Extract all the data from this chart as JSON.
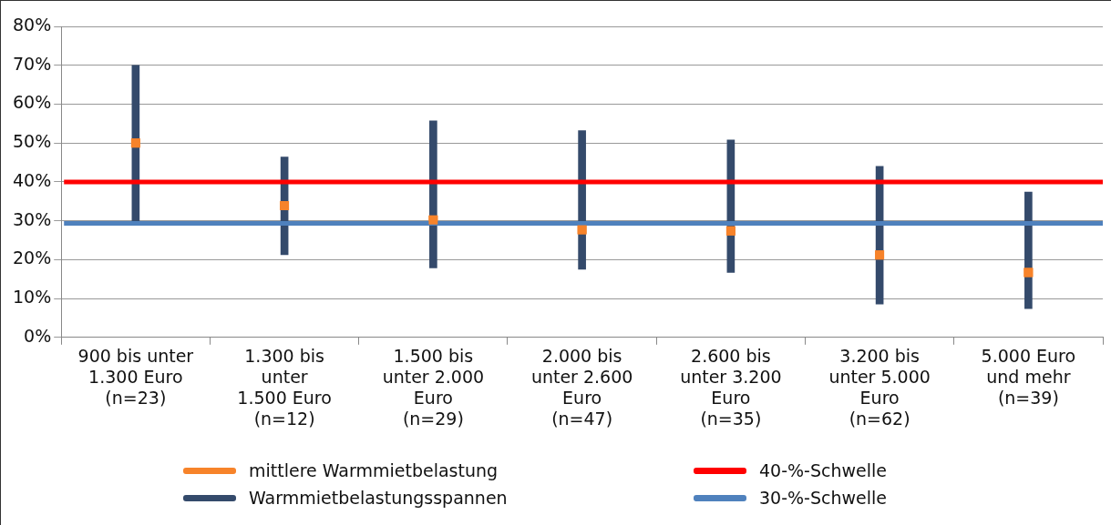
{
  "chart_data": {
    "type": "bar",
    "categories": [
      "900 bis unter\n1.300 Euro\n(n=23)",
      "1.300 bis\nunter\n1.500 Euro\n(n=12)",
      "1.500 bis\nunter 2.000\nEuro\n(n=29)",
      "2.000 bis\nunter 2.600\nEuro\n(n=47)",
      "2.600 bis\nunter 3.200\nEuro\n(n=35)",
      "3.200 bis\nunter 5.000\nEuro\n(n=62)",
      "5.000 Euro\nund mehr\n(n=39)"
    ],
    "series": [
      {
        "name": "mittlere Warmmietbelastung",
        "type": "scatter",
        "marker": "square",
        "color": "#f7832a",
        "x": [
          "900 bis unter\n1.300 Euro\n(n=23)",
          "1.300 bis\nunter\n1.500 Euro\n(n=12)",
          "1.500 bis\nunter 2.000\nEuro\n(n=29)",
          "2.000 bis\nunter 2.600\nEuro\n(n=47)",
          "2.600 bis\nunter 3.200\nEuro\n(n=35)",
          "3.200 bis\nunter 5.000\nEuro\n(n=62)",
          "5.000 Euro\nund mehr\n(n=39)"
        ],
        "values": [
          50,
          33.9,
          30.2,
          27.7,
          27.4,
          21.2,
          16.7
        ]
      },
      {
        "name": "Warmmietbelastungsspannen",
        "color": "#344a6b",
        "base": [
          30,
          21.3,
          17.9,
          17.5,
          16.7,
          8.6,
          7.4
        ],
        "values": [
          40,
          25.1,
          37.8,
          35.7,
          34.1,
          35.4,
          30
        ]
      }
    ],
    "ylim": [
      0,
      80
    ],
    "yticks": [
      {
        "value": 0,
        "label": "0%"
      },
      {
        "value": 10,
        "label": "10%"
      },
      {
        "value": 20,
        "label": "20%"
      },
      {
        "value": 30,
        "label": "30%"
      },
      {
        "value": 40,
        "label": "40%"
      },
      {
        "value": 50,
        "label": "50%"
      },
      {
        "value": 60,
        "label": "60%"
      },
      {
        "value": 70,
        "label": "70%"
      },
      {
        "value": 80,
        "label": "80%"
      }
    ],
    "grid": "y",
    "legend": "bottom",
    "ref_lines": [
      {
        "axis": "y",
        "value": 40,
        "label": "40-%-Schwelle",
        "color": "#ff0000"
      },
      {
        "axis": "y",
        "value": 29.3,
        "label": "30-%-Schwelle",
        "color": "#4f81bd"
      }
    ]
  }
}
